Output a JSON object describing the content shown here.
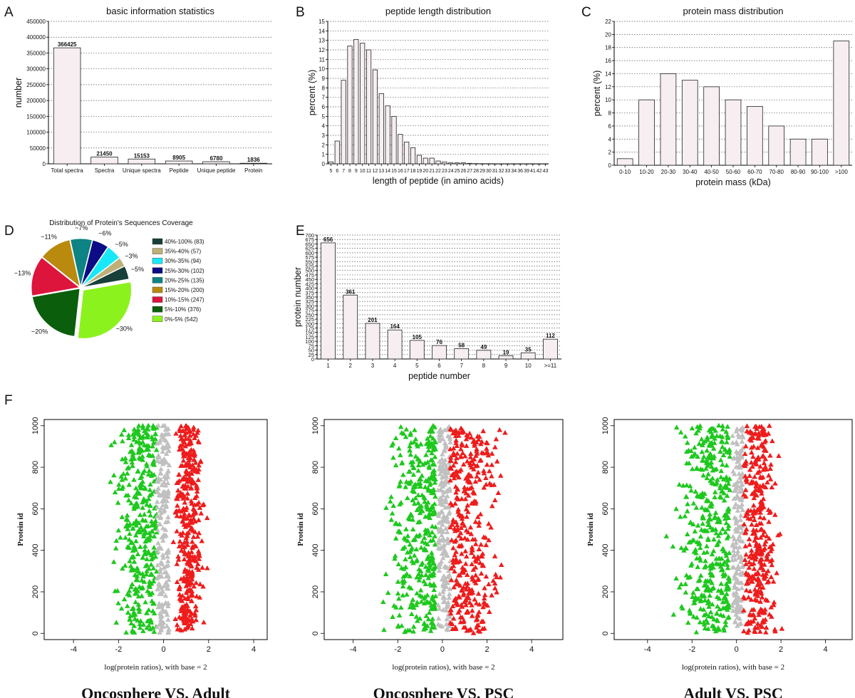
{
  "panel_letters": [
    "A",
    "B",
    "C",
    "D",
    "E",
    "F"
  ],
  "colors": {
    "bar_fill": "#f6eef0",
    "up": "#ee1c1c",
    "down": "#1ec81e",
    "neutral": "#c0c0c0"
  },
  "chart_data": [
    {
      "type": "bar",
      "title": "basic information statistics",
      "xlabel": "",
      "ylabel": "number",
      "categories": [
        "Total spectra",
        "Spectra",
        "Unique spectra",
        "Peptide",
        "Unique peptide",
        "Protein"
      ],
      "values": [
        366425,
        21450,
        15153,
        8905,
        6780,
        1836
      ],
      "data_labels": [
        "366425",
        "21450",
        "15153",
        "8905",
        "6780",
        "1836"
      ],
      "ylim": [
        0,
        450000
      ],
      "yticks": [
        0,
        50000,
        100000,
        150000,
        200000,
        250000,
        300000,
        350000,
        400000,
        450000
      ],
      "grid": "dotted horizontal"
    },
    {
      "type": "bar",
      "title": "peptide length distribution",
      "xlabel": "length of peptide (in amino acids)",
      "ylabel": "percent (%)",
      "categories": [
        "5",
        "6",
        "7",
        "8",
        "9",
        "10",
        "11",
        "12",
        "13",
        "14",
        "15",
        "16",
        "17",
        "18",
        "19",
        "20",
        "21",
        "22",
        "23",
        "24",
        "25",
        "26",
        "27",
        "28",
        "29",
        "30",
        "31",
        "32",
        "33",
        "34",
        "36",
        "39",
        "41",
        "42",
        "43"
      ],
      "values": [
        0.2,
        2.4,
        8.8,
        12.4,
        13.1,
        12.7,
        12.0,
        9.9,
        7.4,
        6.1,
        5.0,
        3.1,
        2.3,
        1.7,
        0.9,
        0.6,
        0.6,
        0.3,
        0.2,
        0.1,
        0.1,
        0.1,
        0.05,
        0.03,
        0.02,
        0.02,
        0.01,
        0.01,
        0.01,
        0.01,
        0.01,
        0.01,
        0.01,
        0.01,
        0.01
      ],
      "ylim": [
        0,
        15
      ],
      "yticks": [
        0,
        1,
        2,
        3,
        4,
        5,
        6,
        7,
        8,
        9,
        10,
        11,
        12,
        13,
        14,
        15
      ],
      "grid": "dotted horizontal"
    },
    {
      "type": "bar",
      "title": "protein mass distribution",
      "xlabel": "protein mass (kDa)",
      "ylabel": "percent (%)",
      "categories": [
        "0-10",
        "10-20",
        "20-30",
        "30-40",
        "40-50",
        "50-60",
        "60-70",
        "70-80",
        "80-90",
        "90-100",
        ">100"
      ],
      "values": [
        1,
        10,
        14,
        13,
        12,
        10,
        9,
        6,
        4,
        4,
        19
      ],
      "ylim": [
        0,
        22
      ],
      "yticks": [
        0,
        2,
        4,
        6,
        8,
        10,
        12,
        14,
        16,
        18,
        20,
        22
      ],
      "grid": "dotted horizontal"
    },
    {
      "type": "pie",
      "title": "Distribution of Protein's Sequences Coverage",
      "legend_position": "right",
      "slices": [
        {
          "name": "40%-100% (83)",
          "value": 83,
          "label": "~5%",
          "color": "#17403a"
        },
        {
          "name": "35%-40% (57)",
          "value": 57,
          "label": "~3%",
          "color": "#bfb079"
        },
        {
          "name": "30%-35% (94)",
          "value": 94,
          "label": "~5%",
          "color": "#19e8f8"
        },
        {
          "name": "25%-30% (102)",
          "value": 102,
          "label": "~6%",
          "color": "#0c0c86"
        },
        {
          "name": "20%-25% (135)",
          "value": 135,
          "label": "~7%",
          "color": "#0d8383"
        },
        {
          "name": "15%-20% (200)",
          "value": 200,
          "label": "~11%",
          "color": "#b98a0d"
        },
        {
          "name": "10%-15% (247)",
          "value": 247,
          "label": "~13%",
          "color": "#dd143c"
        },
        {
          "name": "5%-10% (376)",
          "value": 376,
          "label": "~20%",
          "color": "#0b5e0b"
        },
        {
          "name": "0%-5% (542)",
          "value": 542,
          "label": "~30%",
          "color": "#8cf21e"
        }
      ]
    },
    {
      "type": "bar",
      "title": "",
      "xlabel": "peptide number",
      "ylabel": "protein number",
      "categories": [
        "1",
        "2",
        "3",
        "4",
        "5",
        "6",
        "7",
        "8",
        "9",
        "10",
        ">=11"
      ],
      "values": [
        656,
        361,
        201,
        164,
        105,
        76,
        58,
        49,
        19,
        35,
        112
      ],
      "data_labels": [
        "656",
        "361",
        "201",
        "164",
        "105",
        "76",
        "58",
        "49",
        "19",
        "35",
        "112"
      ],
      "ylim": [
        0,
        700
      ],
      "yticks": [
        0,
        25,
        50,
        75,
        100,
        125,
        150,
        175,
        200,
        225,
        250,
        275,
        300,
        325,
        350,
        375,
        400,
        425,
        450,
        475,
        500,
        525,
        550,
        575,
        600,
        625,
        650,
        675,
        700
      ],
      "grid": "dotted horizontal"
    },
    {
      "type": "scatter",
      "title": "Oncosphere VS. Adult",
      "xlabel": "log(protein ratios), with base = 2",
      "ylabel": "Protein id",
      "xlim": [
        -5.3,
        4.6
      ],
      "ylim": [
        -30,
        1030
      ],
      "xticks": [
        -4,
        -2,
        0,
        2,
        4
      ],
      "yticks": [
        0,
        200,
        400,
        600,
        800,
        1000
      ],
      "marker": "triangle",
      "series": [
        {
          "color": "#1ec81e",
          "x_range": [
            -4.2,
            -0.3
          ],
          "x_center": -1.0,
          "count": 380
        },
        {
          "color": "#c0c0c0",
          "x_range": [
            -0.3,
            0.25
          ],
          "count": 200
        },
        {
          "color": "#ee1c1c",
          "x_range": [
            0.25,
            2.2
          ],
          "x_center": 1.1,
          "count": 380
        }
      ]
    },
    {
      "type": "scatter",
      "title": "Oncosphere VS. PSC",
      "xlabel": "log(protein ratios), with base = 2",
      "ylabel": "Protein id",
      "xlim": [
        -5.3,
        5.4
      ],
      "ylim": [
        -30,
        1030
      ],
      "xticks": [
        -4,
        -2,
        0,
        2,
        4
      ],
      "yticks": [
        0,
        200,
        400,
        600,
        800,
        1000
      ],
      "marker": "triangle",
      "series": [
        {
          "color": "#1ec81e",
          "x_range": [
            -5.3,
            -0.2
          ],
          "x_center": -0.9,
          "count": 380
        },
        {
          "color": "#c0c0c0",
          "x_range": [
            -0.2,
            0.35
          ],
          "count": 200
        },
        {
          "color": "#ee1c1c",
          "x_range": [
            0.35,
            4.8
          ],
          "x_center": 1.2,
          "count": 380
        }
      ]
    },
    {
      "type": "scatter",
      "title": "Adult VS. PSC",
      "xlabel": "log(protein ratios), with base = 2",
      "ylabel": "Protein id",
      "xlim": [
        -5.5,
        5.2
      ],
      "ylim": [
        -30,
        1030
      ],
      "xticks": [
        -4,
        -2,
        0,
        2,
        4
      ],
      "yticks": [
        0,
        200,
        400,
        600,
        800,
        1000
      ],
      "marker": "triangle",
      "series": [
        {
          "color": "#1ec81e",
          "x_range": [
            -5.4,
            -0.2
          ],
          "x_center": -1.1,
          "count": 420
        },
        {
          "color": "#c0c0c0",
          "x_range": [
            -0.2,
            0.3
          ],
          "count": 180
        },
        {
          "color": "#ee1c1c",
          "x_range": [
            0.3,
            3.2
          ],
          "x_center": 1.0,
          "count": 340
        }
      ]
    }
  ]
}
